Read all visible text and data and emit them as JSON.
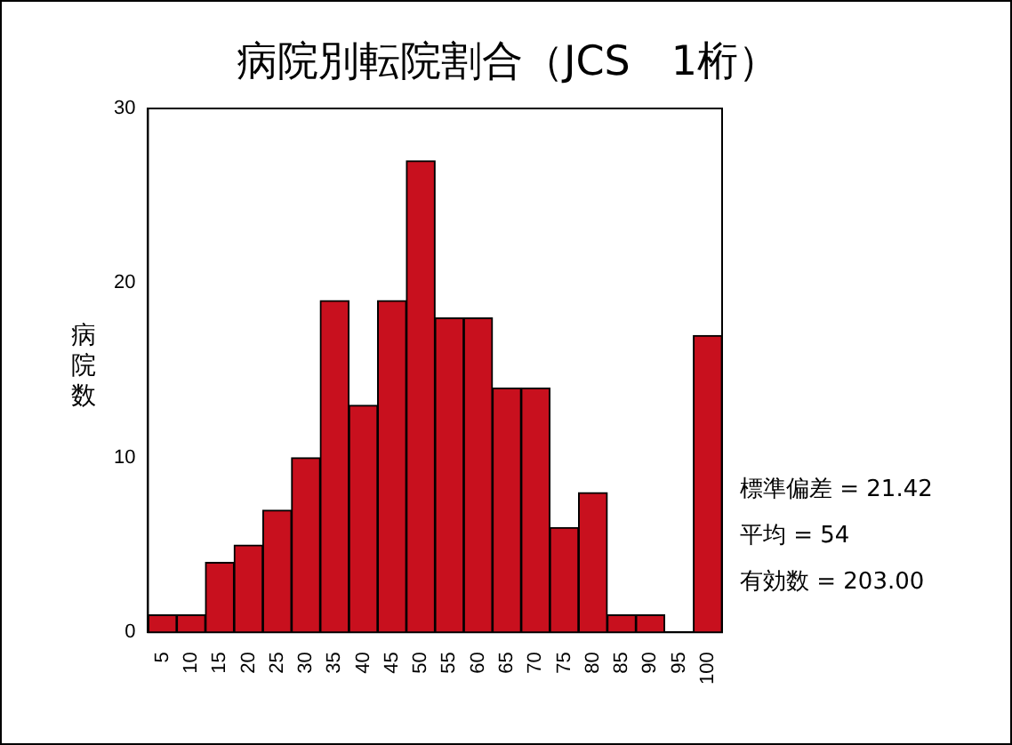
{
  "chart_data": {
    "type": "bar",
    "title": "病院別転院割合（JCS　1桁）",
    "ylabel": "病院数",
    "categories": [
      "5",
      "10",
      "15",
      "20",
      "25",
      "30",
      "35",
      "40",
      "45",
      "50",
      "55",
      "60",
      "65",
      "70",
      "75",
      "80",
      "85",
      "90",
      "95",
      "100"
    ],
    "values": [
      1,
      1,
      4,
      5,
      7,
      10,
      19,
      13,
      19,
      27,
      18,
      18,
      14,
      14,
      6,
      8,
      1,
      1,
      0,
      17
    ],
    "color": "#c8101e",
    "ylim": [
      0,
      30
    ],
    "yticks": [
      0,
      10,
      20,
      30
    ],
    "grid": false,
    "annotations": [
      "標準偏差 = 21.42",
      "平均 = 54",
      "有効数 = 203.00"
    ]
  }
}
